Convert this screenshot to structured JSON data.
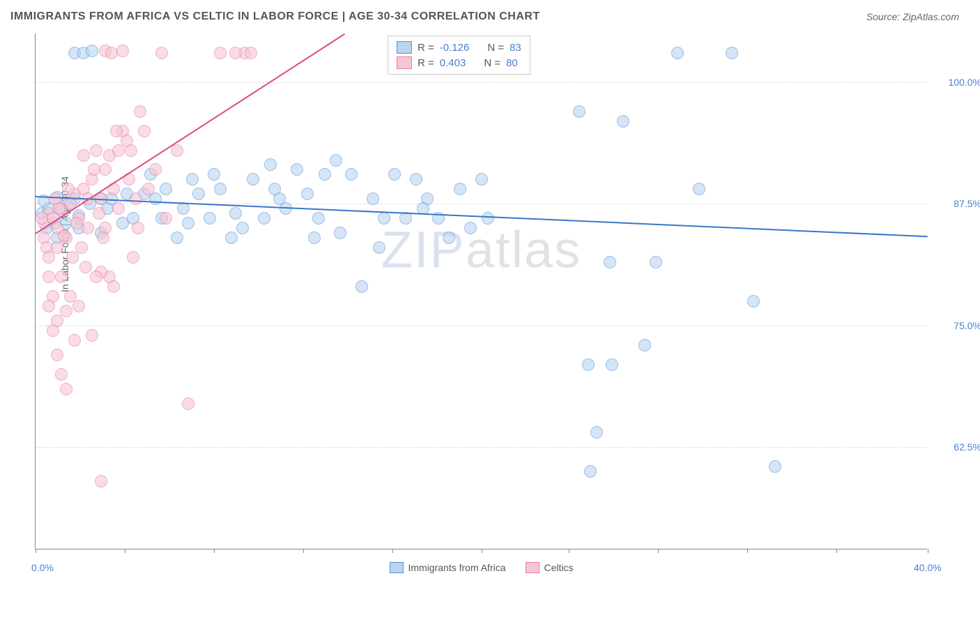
{
  "header": {
    "title": "IMMIGRANTS FROM AFRICA VS CELTIC IN LABOR FORCE | AGE 30-34 CORRELATION CHART",
    "source_prefix": "Source: ",
    "source": "ZipAtlas.com"
  },
  "chart": {
    "type": "scatter",
    "ylabel": "In Labor Force | Age 30-34",
    "xlim": [
      0,
      41
    ],
    "ylim": [
      52,
      105
    ],
    "x_ticks": [
      0,
      4.1,
      8.2,
      12.3,
      16.4,
      20.5,
      24.5,
      28.6,
      32.7,
      36.8,
      41
    ],
    "x_tick_labels": {
      "0": "0.0%",
      "41": "40.0%"
    },
    "y_ticks": [
      62.5,
      75.0,
      87.5,
      100.0
    ],
    "y_tick_labels": [
      "62.5%",
      "75.0%",
      "87.5%",
      "100.0%"
    ],
    "grid_color": "#dddddd",
    "background_color": "#ffffff",
    "axis_color": "#888888",
    "tick_label_color": "#4a7fd4",
    "marker_radius": 9,
    "marker_opacity": 0.6,
    "watermark": {
      "part1": "ZIP",
      "part2": "atlas"
    },
    "series": [
      {
        "name": "Immigrants from Africa",
        "fill": "#b8d4f0",
        "stroke": "#5a93d6",
        "trend_color": "#3a76c8",
        "trend": {
          "x1": 0,
          "y1": 88.3,
          "x2": 41,
          "y2": 84.2
        },
        "R": "-0.126",
        "N": "83",
        "points": [
          [
            0.3,
            86.5
          ],
          [
            0.6,
            87
          ],
          [
            0.4,
            87.8
          ],
          [
            1,
            88.2
          ],
          [
            1.2,
            86.8
          ],
          [
            1.5,
            87.5
          ],
          [
            1.4,
            85.5
          ],
          [
            1.8,
            88
          ],
          [
            2,
            86.3
          ],
          [
            0.9,
            85.5
          ],
          [
            2.5,
            87.5
          ],
          [
            3.0,
            88
          ],
          [
            3.3,
            87
          ],
          [
            3.5,
            88
          ],
          [
            4.0,
            85.5
          ],
          [
            4.2,
            88.5
          ],
          [
            5.0,
            88.5
          ],
          [
            5.3,
            90.5
          ],
          [
            5.5,
            88
          ],
          [
            6,
            89
          ],
          [
            6.5,
            84
          ],
          [
            6.8,
            87
          ],
          [
            7.2,
            90
          ],
          [
            7.5,
            88.5
          ],
          [
            8.0,
            86
          ],
          [
            8.2,
            90.5
          ],
          [
            8.5,
            89
          ],
          [
            9.0,
            84
          ],
          [
            9.5,
            85
          ],
          [
            10,
            90
          ],
          [
            10.5,
            86
          ],
          [
            10.8,
            91.5
          ],
          [
            11.2,
            88
          ],
          [
            11.5,
            87
          ],
          [
            12,
            91
          ],
          [
            12.5,
            88.5
          ],
          [
            13,
            86
          ],
          [
            13.3,
            90.5
          ],
          [
            13.8,
            92
          ],
          [
            14,
            84.5
          ],
          [
            14.5,
            90.5
          ],
          [
            15,
            79
          ],
          [
            15.5,
            88
          ],
          [
            16,
            86
          ],
          [
            16.5,
            90.5
          ],
          [
            17,
            86
          ],
          [
            17.5,
            90
          ],
          [
            18,
            88
          ],
          [
            18.5,
            86
          ],
          [
            19,
            84
          ],
          [
            19.5,
            89
          ],
          [
            20,
            85
          ],
          [
            20.5,
            90
          ],
          [
            1.8,
            103
          ],
          [
            2.2,
            103
          ],
          [
            2.6,
            103.2
          ],
          [
            25,
            97
          ],
          [
            25.4,
            71
          ],
          [
            25.5,
            60
          ],
          [
            25.8,
            64
          ],
          [
            26.4,
            81.5
          ],
          [
            26.5,
            71
          ],
          [
            27,
            96
          ],
          [
            28,
            73
          ],
          [
            28.5,
            81.5
          ],
          [
            29.5,
            103
          ],
          [
            30.5,
            89
          ],
          [
            32,
            103
          ],
          [
            33,
            77.5
          ],
          [
            34,
            60.5
          ],
          [
            1,
            84
          ],
          [
            0.5,
            85
          ],
          [
            2,
            85
          ],
          [
            3,
            84.5
          ],
          [
            4.5,
            86
          ],
          [
            5.8,
            86
          ],
          [
            7,
            85.5
          ],
          [
            9.2,
            86.5
          ],
          [
            11,
            89
          ],
          [
            12.8,
            84
          ],
          [
            15.8,
            83
          ],
          [
            17.8,
            87
          ],
          [
            20.8,
            86
          ]
        ]
      },
      {
        "name": "Celtics",
        "fill": "#f6c6d6",
        "stroke": "#e87ba0",
        "trend_color": "#e04a7e",
        "trend": {
          "x1": 0,
          "y1": 84.5,
          "x2": 14.2,
          "y2": 105
        },
        "R": "0.403",
        "N": "80",
        "points": [
          [
            0.4,
            85.5
          ],
          [
            0.6,
            86.5
          ],
          [
            0.4,
            84
          ],
          [
            0.8,
            86
          ],
          [
            1.0,
            85
          ],
          [
            0.5,
            83
          ],
          [
            1.2,
            87
          ],
          [
            0.6,
            82
          ],
          [
            1.4,
            84
          ],
          [
            0.3,
            86
          ],
          [
            1.6,
            87.5
          ],
          [
            1.0,
            83
          ],
          [
            1.8,
            88.5
          ],
          [
            0.6,
            80
          ],
          [
            2.0,
            86
          ],
          [
            0.8,
            78
          ],
          [
            2.2,
            89
          ],
          [
            1.2,
            80
          ],
          [
            1.7,
            82
          ],
          [
            2.4,
            88
          ],
          [
            1.4,
            76.5
          ],
          [
            2.6,
            90
          ],
          [
            1.6,
            78
          ],
          [
            2.8,
            93
          ],
          [
            0.8,
            74.5
          ],
          [
            3.0,
            88
          ],
          [
            1.0,
            72
          ],
          [
            3.2,
            91
          ],
          [
            1.2,
            70
          ],
          [
            3.4,
            92.5
          ],
          [
            3.2,
            103.2
          ],
          [
            3.5,
            103
          ],
          [
            1.4,
            68.5
          ],
          [
            3.6,
            89
          ],
          [
            0.6,
            77
          ],
          [
            3.8,
            93
          ],
          [
            2.2,
            92.5
          ],
          [
            4.0,
            95
          ],
          [
            1.0,
            75.5
          ],
          [
            4.2,
            94
          ],
          [
            4.0,
            103.2
          ],
          [
            4.4,
            93
          ],
          [
            3.4,
            80
          ],
          [
            4.6,
            88
          ],
          [
            2.4,
            85
          ],
          [
            4.8,
            97
          ],
          [
            1.8,
            73.5
          ],
          [
            5.0,
            95
          ],
          [
            3.0,
            59
          ],
          [
            5.8,
            103
          ],
          [
            3.2,
            85
          ],
          [
            7.0,
            67
          ],
          [
            4.5,
            82
          ],
          [
            9.6,
            103
          ],
          [
            3.6,
            79
          ],
          [
            9.9,
            103
          ],
          [
            3.0,
            80.5
          ],
          [
            6.0,
            86
          ],
          [
            2.6,
            74
          ],
          [
            8.5,
            103
          ],
          [
            3.8,
            87
          ],
          [
            9.2,
            103
          ],
          [
            4.3,
            90
          ],
          [
            5.5,
            91
          ],
          [
            2.0,
            77
          ],
          [
            5.2,
            89
          ],
          [
            3.7,
            95
          ],
          [
            6.5,
            93
          ],
          [
            2.8,
            80
          ],
          [
            4.7,
            85
          ],
          [
            1.3,
            84.2
          ],
          [
            1.9,
            85.5
          ],
          [
            2.1,
            83
          ],
          [
            2.3,
            81
          ],
          [
            2.9,
            86.5
          ],
          [
            3.1,
            84
          ],
          [
            1.1,
            87
          ],
          [
            0.9,
            88
          ],
          [
            1.5,
            89
          ],
          [
            2.7,
            91
          ]
        ]
      }
    ]
  },
  "legend_bottom": {
    "items": [
      {
        "label": "Immigrants from Africa",
        "fill": "#b8d4f0",
        "stroke": "#5a93d6"
      },
      {
        "label": "Celtics",
        "fill": "#f6c6d6",
        "stroke": "#e87ba0"
      }
    ]
  },
  "legend_top": {
    "labels": {
      "R": "R = ",
      "N": "N = "
    }
  }
}
